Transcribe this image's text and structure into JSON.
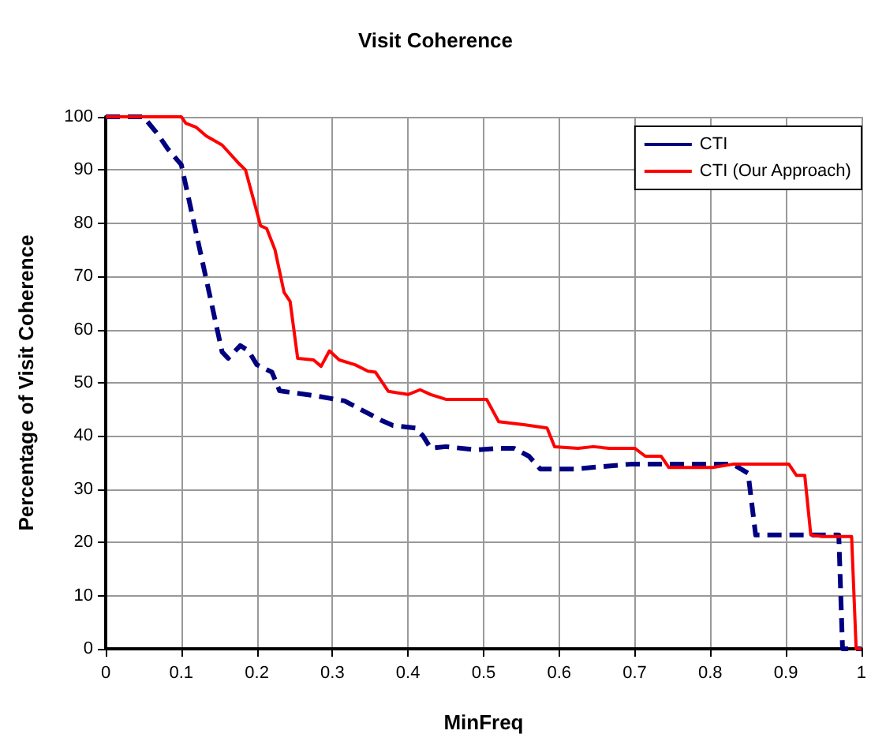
{
  "chart_data": {
    "type": "line",
    "title": "Visit Coherence",
    "xlabel": "MinFreq",
    "ylabel": "Percentage of Visit Coherence",
    "xlim": [
      0,
      1
    ],
    "xticks": [
      0,
      0.1,
      0.2,
      0.3,
      0.4,
      0.5,
      0.6,
      0.7,
      0.8,
      0.9,
      1
    ],
    "ylim": [
      0,
      100
    ],
    "yticks": [
      0,
      10,
      20,
      30,
      40,
      50,
      60,
      70,
      80,
      90,
      100
    ],
    "grid": true,
    "legend": "top right",
    "marker": "none",
    "series": [
      {
        "name": "CTI",
        "color": "#000080",
        "line_style": "dashed",
        "x": [
          0,
          0.05,
          0.069,
          0.082,
          0.1,
          0.154,
          0.162,
          0.178,
          0.189,
          0.2,
          0.22,
          0.23,
          0.28,
          0.316,
          0.364,
          0.38,
          0.41,
          0.42,
          0.43,
          0.45,
          0.49,
          0.52,
          0.54,
          0.56,
          0.575,
          0.62,
          0.694,
          0.83,
          0.85,
          0.86,
          0.97,
          0.975,
          1
        ],
        "values": [
          100,
          100,
          96.7,
          94,
          91,
          55.8,
          54.6,
          57,
          56,
          53.4,
          52,
          48.5,
          47.5,
          46.6,
          43,
          42,
          41.5,
          40,
          37.7,
          38,
          37.4,
          37.7,
          37.7,
          36.2,
          33.8,
          33.8,
          34.7,
          34.7,
          33,
          21.4,
          21.4,
          0,
          0
        ]
      },
      {
        "name": "CTI (Our Approach)",
        "color": "#ff0000",
        "line_style": "solid",
        "x": [
          0,
          0.1,
          0.106,
          0.12,
          0.133,
          0.154,
          0.175,
          0.185,
          0.205,
          0.213,
          0.224,
          0.236,
          0.244,
          0.254,
          0.275,
          0.285,
          0.296,
          0.309,
          0.33,
          0.347,
          0.357,
          0.374,
          0.4,
          0.416,
          0.43,
          0.45,
          0.504,
          0.52,
          0.555,
          0.584,
          0.594,
          0.625,
          0.645,
          0.666,
          0.7,
          0.714,
          0.735,
          0.745,
          0.803,
          0.83,
          0.904,
          0.914,
          0.925,
          0.933,
          0.948,
          0.987,
          0.993,
          1
        ],
        "values": [
          100,
          100,
          98.8,
          98,
          96.4,
          94.7,
          91.4,
          90,
          79.5,
          79,
          75,
          67,
          65.3,
          54.6,
          54.3,
          53.1,
          56,
          54.3,
          53.4,
          52.2,
          52,
          48.4,
          47.8,
          48.7,
          47.8,
          46.9,
          46.9,
          42.7,
          42.1,
          41.5,
          38,
          37.7,
          38,
          37.7,
          37.7,
          36.2,
          36.2,
          34.1,
          34.1,
          34.7,
          34.7,
          32.6,
          32.6,
          21.4,
          21.1,
          21.1,
          0,
          0
        ]
      }
    ]
  }
}
